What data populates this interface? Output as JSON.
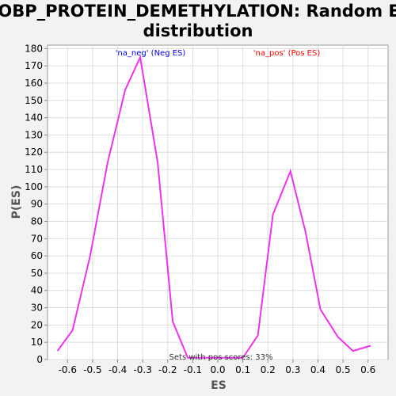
{
  "chart_data": {
    "type": "line",
    "title_line1": "GOBP_PROTEIN_DEMETHYLATION: Random ES",
    "title_line2": "distribution",
    "xlabel": "ES",
    "ylabel": "P(ES)",
    "xlim": [
      -0.68,
      0.68
    ],
    "ylim": [
      0,
      182
    ],
    "x_ticks": [
      -0.6,
      -0.5,
      -0.4,
      -0.3,
      -0.2,
      -0.1,
      0.0,
      0.1,
      0.2,
      0.3,
      0.4,
      0.5,
      0.6
    ],
    "x_tick_labels": [
      "-0.6",
      "-0.5",
      "-0.4",
      "-0.3",
      "-0.2",
      "-0.1",
      "0.0",
      "0.1",
      "0.2",
      "0.3",
      "0.4",
      "0.5",
      "0.6"
    ],
    "y_ticks": [
      0,
      10,
      20,
      30,
      40,
      50,
      60,
      70,
      80,
      90,
      100,
      110,
      120,
      130,
      140,
      150,
      160,
      170,
      180
    ],
    "y_tick_labels": [
      "0",
      "10",
      "20",
      "30",
      "40",
      "50",
      "60",
      "70",
      "80",
      "90",
      "100",
      "110",
      "120",
      "130",
      "140",
      "150",
      "160",
      "170",
      "180"
    ],
    "grid": true,
    "legend": [
      {
        "label": "'na_neg' (Neg ES)",
        "color": "#0000ff"
      },
      {
        "label": "'na_pos' (Pos ES)",
        "color": "#ff0000"
      }
    ],
    "annotation": "Sets with pos scores: 33%",
    "series": [
      {
        "color": "#ee33ee",
        "points": [
          [
            -0.64,
            5
          ],
          [
            -0.58,
            17
          ],
          [
            -0.51,
            60
          ],
          [
            -0.44,
            114
          ],
          [
            -0.37,
            156
          ],
          [
            -0.31,
            175
          ],
          [
            -0.24,
            114
          ],
          [
            -0.18,
            22
          ],
          [
            -0.12,
            1
          ],
          [
            -0.06,
            1
          ],
          [
            0.0,
            1
          ],
          [
            0.1,
            1
          ],
          [
            0.16,
            14
          ],
          [
            0.22,
            84
          ],
          [
            0.29,
            109
          ],
          [
            0.35,
            74
          ],
          [
            0.41,
            29
          ],
          [
            0.48,
            13
          ],
          [
            0.54,
            5
          ],
          [
            0.61,
            8
          ]
        ]
      }
    ]
  }
}
